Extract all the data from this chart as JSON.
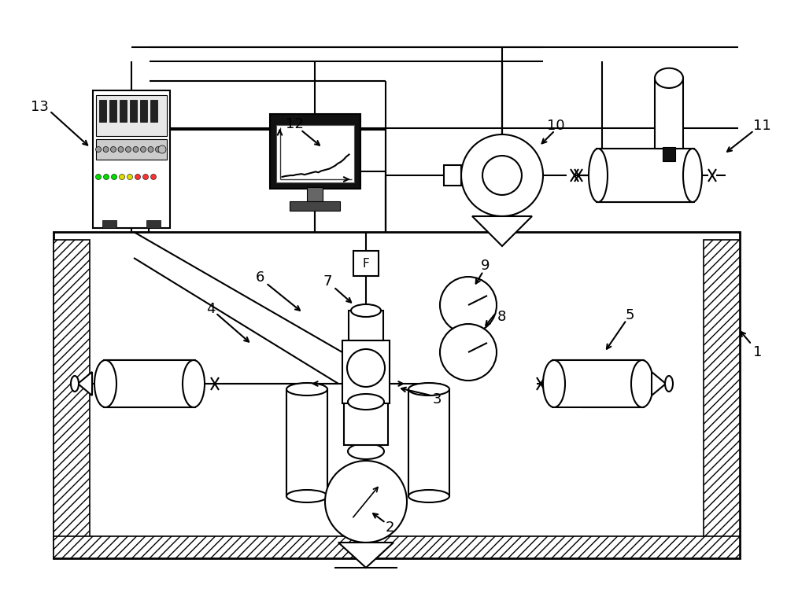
{
  "bg_color": "#ffffff",
  "line_color": "#000000",
  "label_fontsize": 13,
  "lw": 1.5,
  "fig_w": 10.0,
  "fig_h": 7.58,
  "dpi": 100
}
